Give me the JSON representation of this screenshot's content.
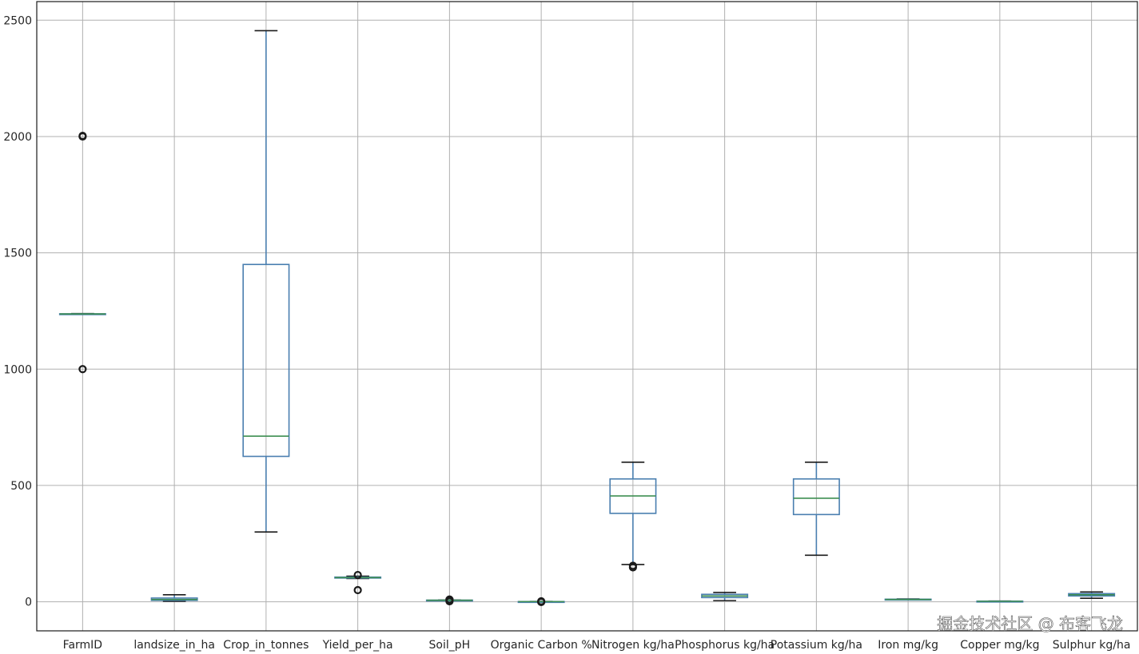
{
  "chart_data": {
    "type": "box",
    "title": "",
    "xlabel": "",
    "ylabel": "",
    "ylim": [
      -125,
      2580
    ],
    "yticks": [
      0,
      500,
      1000,
      1500,
      2000,
      2500
    ],
    "ytick_labels": [
      "0",
      "500",
      "1000",
      "1500",
      "2000",
      "2500"
    ],
    "grid": true,
    "colors": {
      "box": "#4a7fb0",
      "median": "#3f8f52",
      "cap": "#1a1a1a",
      "grid": "#b0b0b0"
    },
    "categories": [
      "FarmID",
      "landsize_in_ha",
      "Crop_in_tonnes",
      "Yield_per_ha",
      "Soil_pH",
      "Organic Carbon %",
      "Nitrogen kg/ha",
      "Phosphorus kg/ha",
      "Potassium kg/ha",
      "Iron mg/kg",
      "Copper mg/kg",
      "Sulphur kg/ha"
    ],
    "boxes": [
      {
        "whislo": 1236,
        "q1": 1237,
        "med": 1237,
        "q3": 1238,
        "whishi": 1239,
        "fliers": [
          1000,
          2000,
          2003
        ]
      },
      {
        "whislo": 2,
        "q1": 6,
        "med": 10,
        "q3": 16,
        "whishi": 30,
        "fliers": []
      },
      {
        "whislo": 300,
        "q1": 625,
        "med": 712,
        "q3": 1450,
        "whishi": 2455,
        "fliers": []
      },
      {
        "whislo": 100,
        "q1": 102,
        "med": 104,
        "q3": 106,
        "whishi": 110,
        "fliers": [
          50,
          115
        ]
      },
      {
        "whislo": 5.5,
        "q1": 6,
        "med": 6.5,
        "q3": 7,
        "whishi": 7.5,
        "fliers": [
          2,
          8,
          10
        ]
      },
      {
        "whislo": 0.3,
        "q1": 0.5,
        "med": 0.7,
        "q3": 0.9,
        "whishi": 1.2,
        "fliers": [
          -1,
          2
        ]
      },
      {
        "whislo": 160,
        "q1": 380,
        "med": 455,
        "q3": 528,
        "whishi": 600,
        "fliers": [
          148,
          155
        ]
      },
      {
        "whislo": 5,
        "q1": 18,
        "med": 25,
        "q3": 32,
        "whishi": 40,
        "fliers": []
      },
      {
        "whislo": 200,
        "q1": 375,
        "med": 445,
        "q3": 528,
        "whishi": 600,
        "fliers": []
      },
      {
        "whislo": 8,
        "q1": 9,
        "med": 10,
        "q3": 11,
        "whishi": 12,
        "fliers": []
      },
      {
        "whislo": 1,
        "q1": 1.5,
        "med": 2,
        "q3": 2.5,
        "whishi": 3,
        "fliers": []
      },
      {
        "whislo": 15,
        "q1": 25,
        "med": 30,
        "q3": 35,
        "whishi": 42,
        "fliers": []
      }
    ]
  },
  "watermark": "掘金技术社区 @ 布客飞龙"
}
